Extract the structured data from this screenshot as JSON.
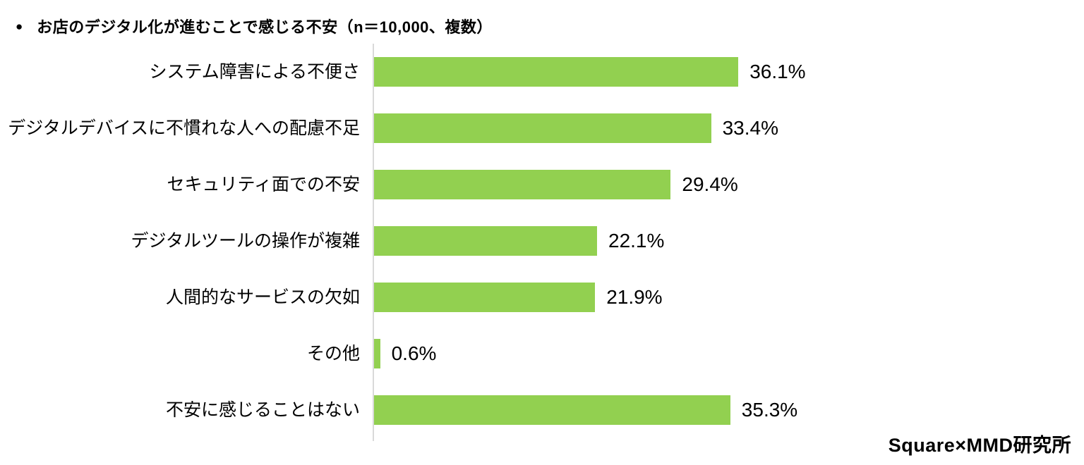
{
  "title": {
    "bullet": "●",
    "text": "お店のデジタル化が進むことで感じる不安（n＝10,000、複数）"
  },
  "chart_data": {
    "type": "bar",
    "orientation": "horizontal",
    "title": "お店のデジタル化が進むことで感じる不安（n＝10,000、複数）",
    "categories": [
      "システム障害による不便さ",
      "デジタルデバイスに不慣れな人への配慮不足",
      "セキュリティ面での不安",
      "デジタルツールの操作が複雑",
      "人間的なサービスの欠如",
      "その他",
      "不安に感じることはない"
    ],
    "values": [
      36.1,
      33.4,
      29.4,
      22.1,
      21.9,
      0.6,
      35.3
    ],
    "value_labels": [
      "36.1%",
      "33.4%",
      "29.4%",
      "22.1%",
      "21.9%",
      "0.6%",
      "35.3%"
    ],
    "xlabel": "",
    "ylabel": "",
    "xlim": [
      0,
      40
    ],
    "grid": false,
    "legend": false,
    "bar_color": "#92d050",
    "axis_color": "#d9d9d9",
    "text_color": "#000000"
  },
  "footer": {
    "credit": "Square×MMD研究所"
  }
}
